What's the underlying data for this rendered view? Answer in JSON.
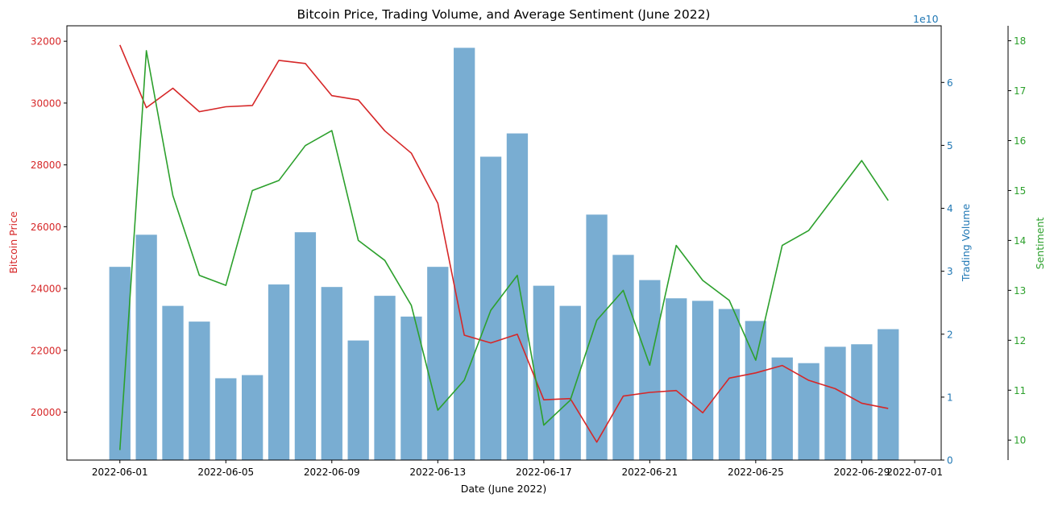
{
  "chart_data": {
    "type": "bar+line",
    "title": "Bitcoin Price, Trading Volume, and Average Sentiment (June 2022)",
    "xlabel": "Date (June 2022)",
    "x_ticks": [
      "2022-06-01",
      "2022-06-05",
      "2022-06-09",
      "2022-06-13",
      "2022-06-17",
      "2022-06-21",
      "2022-06-25",
      "2022-06-29",
      "2022-07-01"
    ],
    "dates": [
      "2022-06-01",
      "2022-06-02",
      "2022-06-03",
      "2022-06-04",
      "2022-06-05",
      "2022-06-06",
      "2022-06-07",
      "2022-06-08",
      "2022-06-09",
      "2022-06-10",
      "2022-06-11",
      "2022-06-12",
      "2022-06-13",
      "2022-06-14",
      "2022-06-15",
      "2022-06-16",
      "2022-06-17",
      "2022-06-18",
      "2022-06-19",
      "2022-06-20",
      "2022-06-21",
      "2022-06-22",
      "2022-06-23",
      "2022-06-24",
      "2022-06-25",
      "2022-06-26",
      "2022-06-27",
      "2022-06-28",
      "2022-06-29",
      "2022-06-30"
    ],
    "x_range": [
      "2022-05-30",
      "2022-07-02"
    ],
    "grid": false,
    "axes": {
      "price": {
        "label": "Bitcoin Price",
        "color": "#d62728",
        "ylim": [
          18450,
          32500
        ],
        "ticks": [
          20000,
          22000,
          24000,
          26000,
          28000,
          30000,
          32000
        ]
      },
      "volume": {
        "label": "Trading Volume",
        "color": "#1f77b4",
        "offset_label": "1e10",
        "ylim": [
          0,
          6.9
        ],
        "ticks": [
          0,
          1,
          2,
          3,
          4,
          5,
          6
        ]
      },
      "sentiment": {
        "label": "Sentiment",
        "color": "#2ca02c",
        "ylim": [
          9.6,
          18.3
        ],
        "ticks": [
          10,
          11,
          12,
          13,
          14,
          15,
          16,
          17,
          18
        ]
      }
    },
    "series": [
      {
        "axis": "price",
        "kind": "line",
        "color": "#d62728",
        "values": [
          31880,
          29850,
          30480,
          29720,
          29880,
          29920,
          31380,
          31280,
          30240,
          30100,
          29100,
          28380,
          26760,
          22490,
          22240,
          22520,
          20400,
          20440,
          19030,
          20520,
          20640,
          20700,
          19980,
          21100,
          21270,
          21510,
          21030,
          20760,
          20290,
          20120
        ]
      },
      {
        "axis": "volume",
        "kind": "bar",
        "color": "#1f77b4",
        "opacity": 0.6,
        "values": [
          3.07,
          3.58,
          2.45,
          2.2,
          1.3,
          1.35,
          2.79,
          3.62,
          2.75,
          1.9,
          2.61,
          2.28,
          3.07,
          6.55,
          4.82,
          5.19,
          2.77,
          2.45,
          3.9,
          3.26,
          2.86,
          2.57,
          2.53,
          2.4,
          2.21,
          1.63,
          1.54,
          1.8,
          1.84,
          2.08
        ]
      },
      {
        "axis": "sentiment",
        "kind": "line",
        "color": "#2ca02c",
        "values": [
          9.8,
          17.8,
          14.9,
          13.3,
          13.1,
          15.0,
          15.2,
          15.9,
          16.2,
          14.0,
          13.6,
          12.7,
          10.6,
          11.2,
          12.6,
          13.3,
          10.3,
          10.8,
          12.4,
          13.0,
          11.5,
          13.9,
          13.2,
          12.8,
          11.6,
          13.9,
          14.2,
          14.9,
          15.6,
          14.8
        ]
      }
    ]
  }
}
